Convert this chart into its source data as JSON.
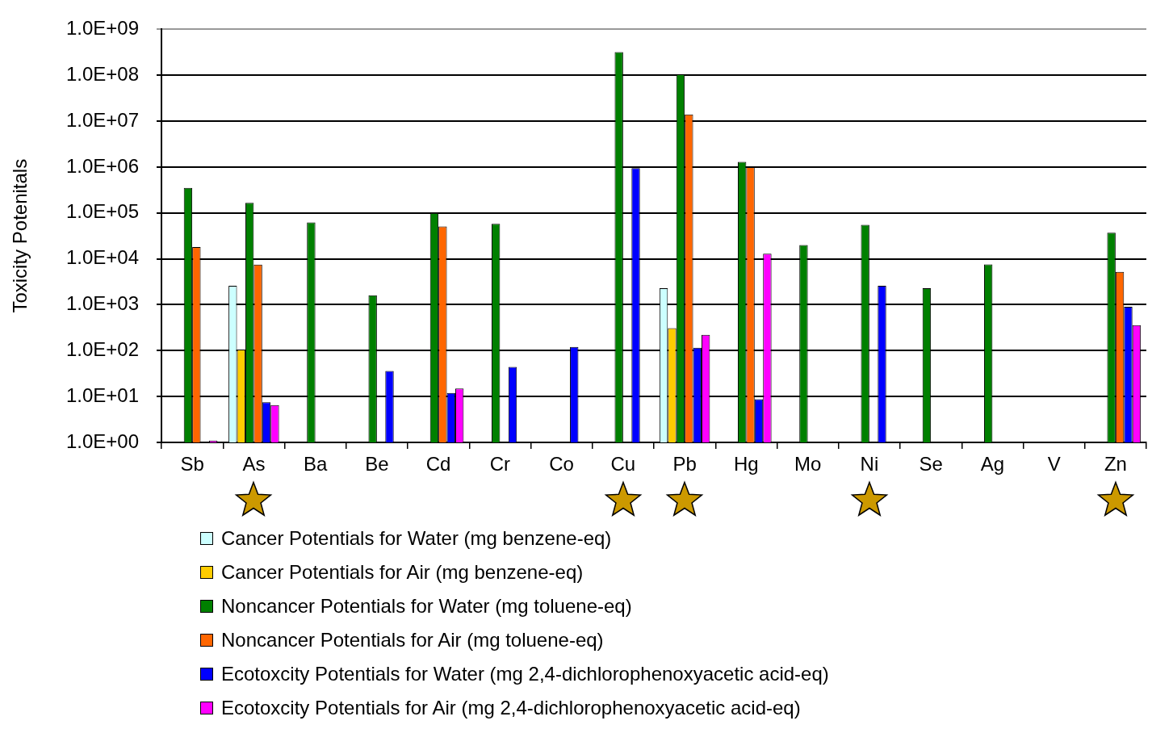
{
  "chart_data": {
    "type": "bar",
    "ylabel": "Toxicity Potenitals",
    "categories": [
      "Sb",
      "As",
      "Ba",
      "Be",
      "Cd",
      "Cr",
      "Co",
      "Cu",
      "Pb",
      "Hg",
      "Mo",
      "Ni",
      "Se",
      "Ag",
      "V",
      "Zn"
    ],
    "series": [
      {
        "name": "Cancer Potentials for Water (mg benzene-eq)",
        "color": "#ccffff",
        "values": [
          null,
          2600,
          null,
          null,
          null,
          null,
          null,
          null,
          2300,
          null,
          null,
          null,
          null,
          null,
          null,
          null
        ]
      },
      {
        "name": "Cancer Potentials for Air (mg benzene-eq)",
        "color": "#ffcc00",
        "values": [
          null,
          105,
          null,
          null,
          null,
          null,
          null,
          null,
          310,
          null,
          null,
          null,
          null,
          null,
          null,
          null
        ]
      },
      {
        "name": "Noncancer Potentials for Water (mg toluene-eq)",
        "color": "#008000",
        "values": [
          350000,
          166000,
          62000,
          1600,
          100000,
          58000,
          null,
          320000000,
          105000000,
          1300000,
          20000,
          55000,
          2300,
          7600,
          null,
          37000
        ]
      },
      {
        "name": "Noncancer Potentials for Air (mg toluene-eq)",
        "color": "#ff6600",
        "values": [
          18000,
          7500,
          null,
          null,
          51000,
          null,
          null,
          null,
          14000000,
          1000000,
          null,
          null,
          null,
          null,
          null,
          5200
        ]
      },
      {
        "name": "Ecotoxcity Potentials for Water (mg 2,4-dichlorophenoxyacetic acid-eq)",
        "color": "#0000ff",
        "values": [
          null,
          7.5,
          null,
          36,
          12,
          44,
          120,
          950000,
          115,
          8.7,
          null,
          2600,
          null,
          null,
          null,
          900
        ]
      },
      {
        "name": "Ecotoxcity Potentials for Air (mg 2,4-dichlorophenoxyacetic acid-eq)",
        "color": "#ff00ff",
        "values": [
          1.1,
          6.5,
          null,
          null,
          15,
          null,
          null,
          null,
          220,
          13000,
          null,
          null,
          null,
          null,
          null,
          360
        ]
      }
    ],
    "log": "y",
    "ylim": [
      1,
      1000000000
    ],
    "yticks": [
      {
        "value": 1,
        "label": "1.0E+00"
      },
      {
        "value": 10,
        "label": "1.0E+01"
      },
      {
        "value": 100,
        "label": "1.0E+02"
      },
      {
        "value": 1000,
        "label": "1.0E+03"
      },
      {
        "value": 10000,
        "label": "1.0E+04"
      },
      {
        "value": 100000,
        "label": "1.0E+05"
      },
      {
        "value": 1000000,
        "label": "1.0E+06"
      },
      {
        "value": 10000000,
        "label": "1.0E+07"
      },
      {
        "value": 100000000,
        "label": "1.0E+08"
      },
      {
        "value": 1000000000,
        "label": "1.0E+09"
      }
    ],
    "grid": "y",
    "legend": "bottom"
  }
}
